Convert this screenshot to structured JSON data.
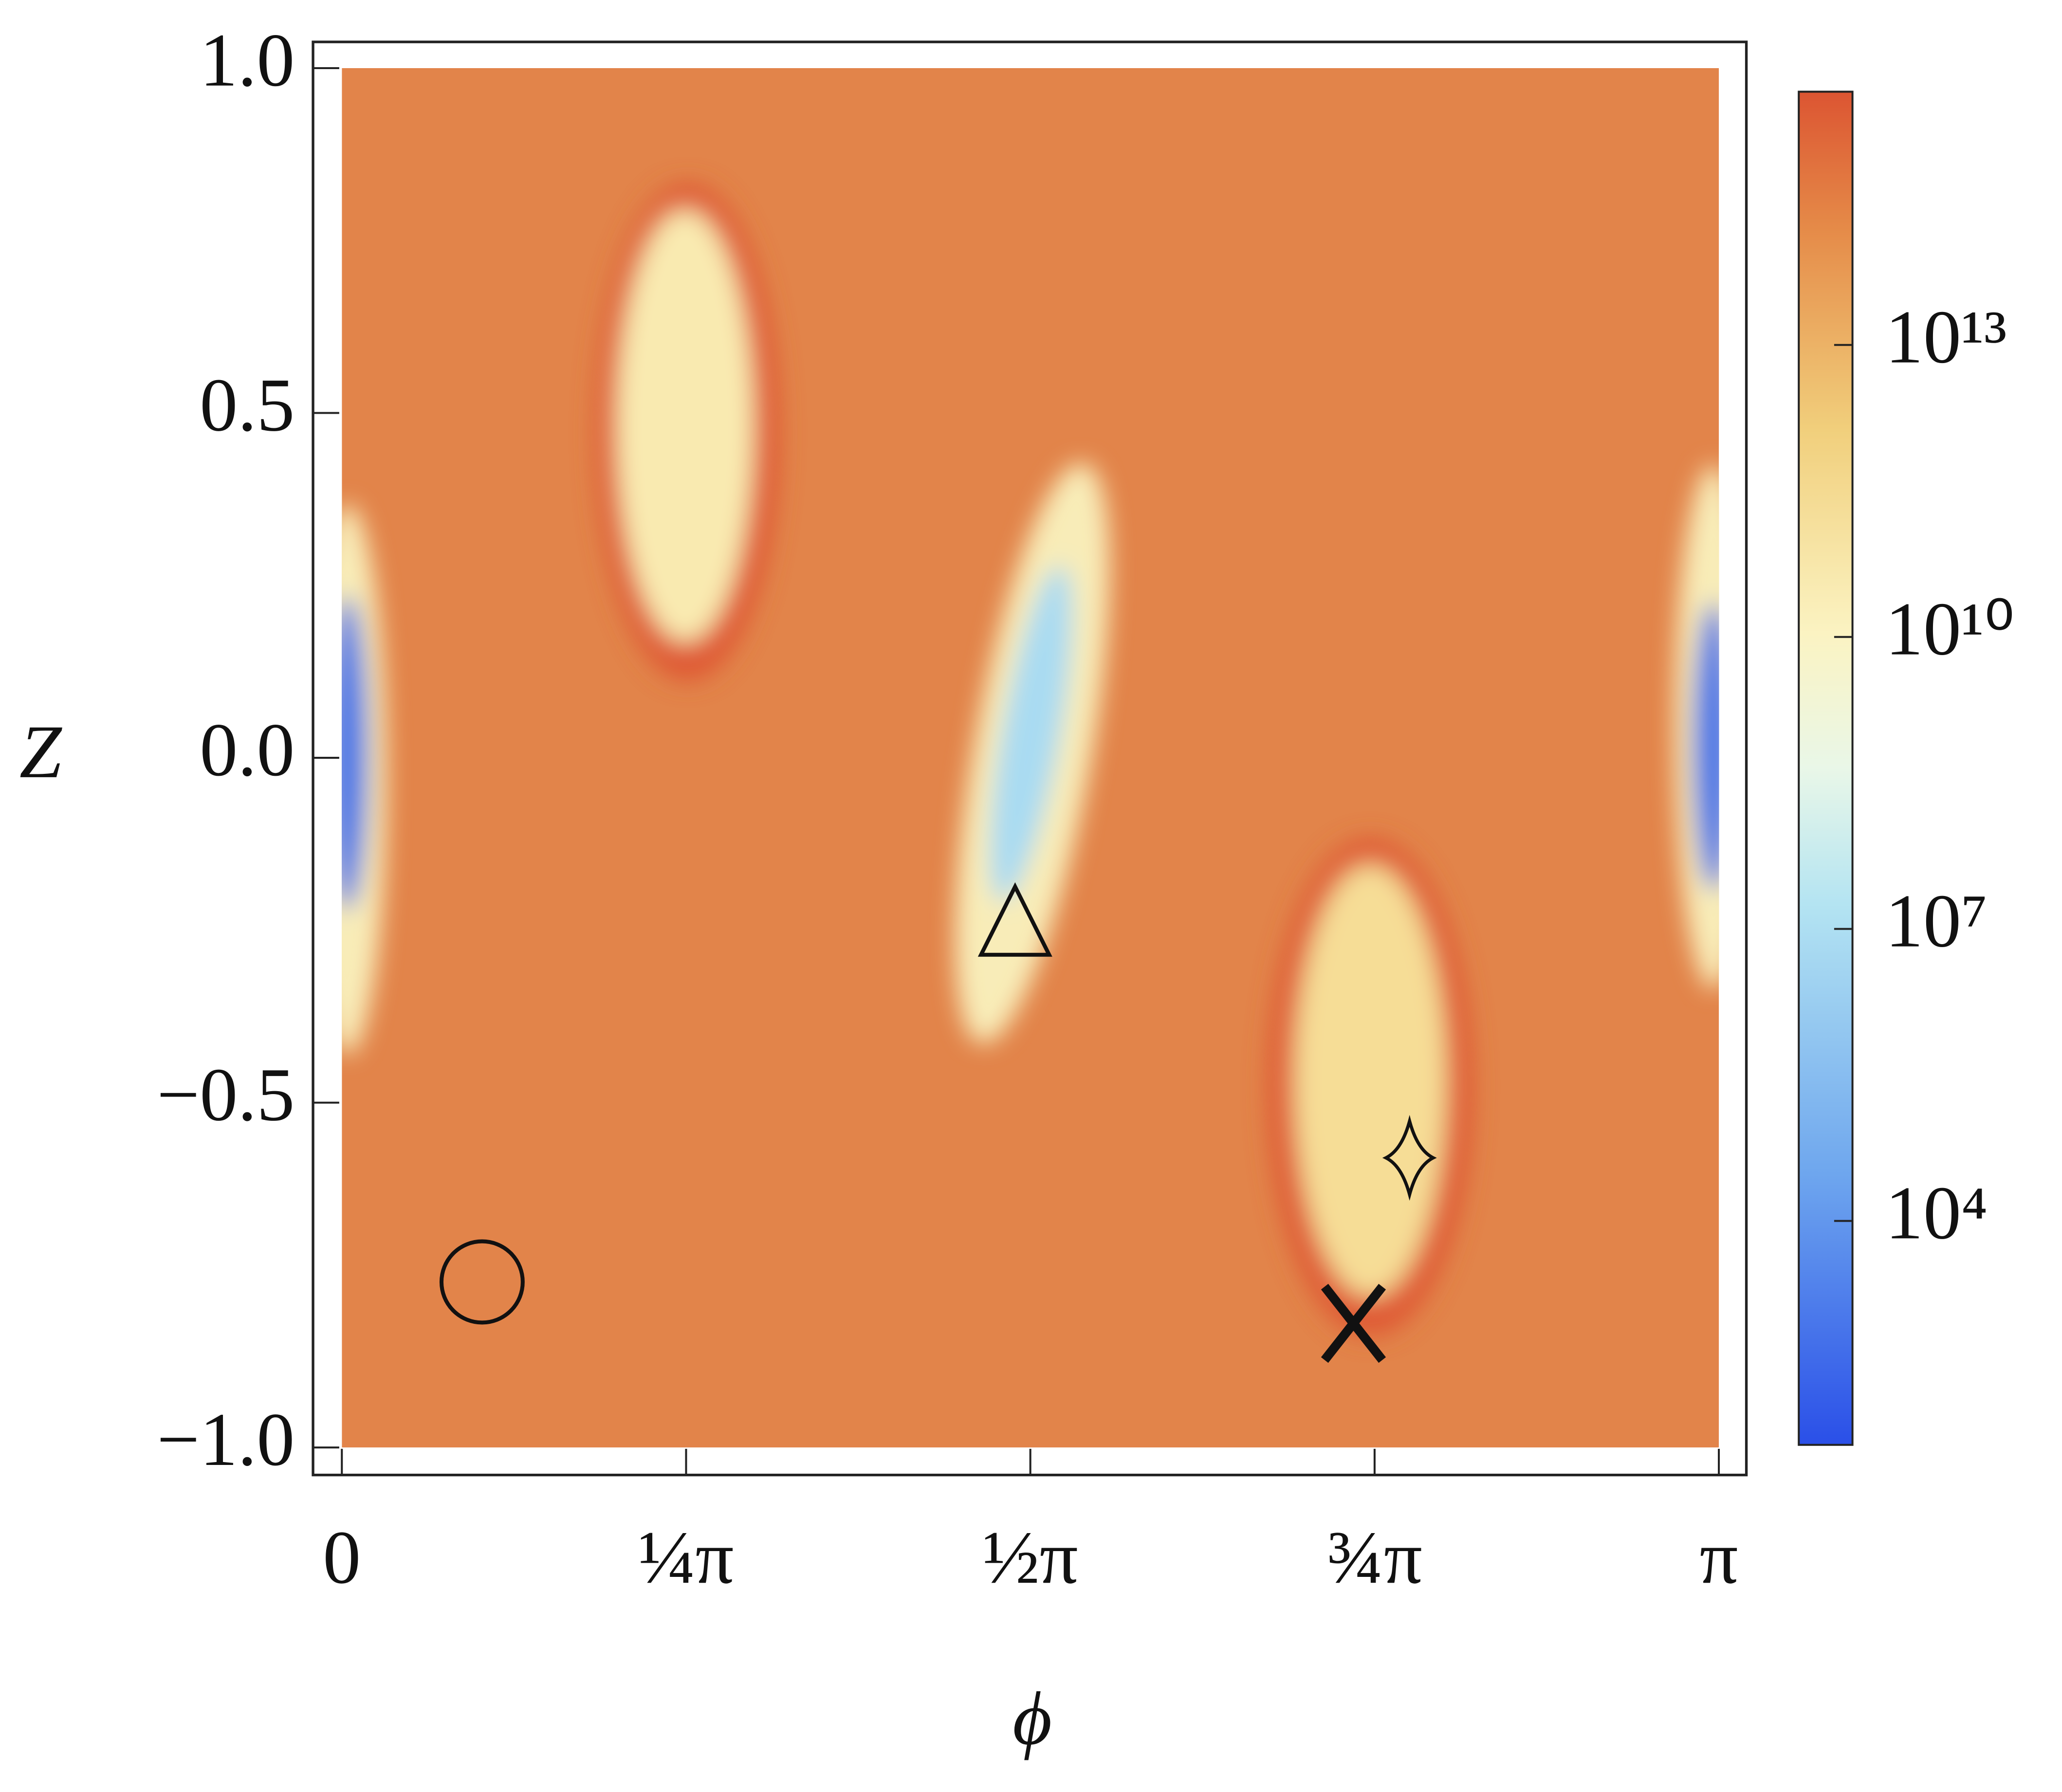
{
  "chart_data": {
    "type": "heatmap",
    "x_label": "ϕ",
    "y_label": "Z",
    "xlim": [
      0,
      3.141592653589793
    ],
    "ylim": [
      -1,
      1
    ],
    "xticks": [
      {
        "value": 0,
        "label": "0"
      },
      {
        "value": 0.7853981633974483,
        "label": "¼π"
      },
      {
        "value": 1.5707963267948966,
        "label": "½π"
      },
      {
        "value": 2.356194490192345,
        "label": "¾π"
      },
      {
        "value": 3.141592653589793,
        "label": "π"
      }
    ],
    "yticks": [
      {
        "value": -1,
        "label": "−1.0"
      },
      {
        "value": -0.5,
        "label": "−0.5"
      },
      {
        "value": 0,
        "label": "0.0"
      },
      0.5,
      {
        "value": 1,
        "label": "1.0"
      }
    ],
    "colorbar": {
      "log_scale": true,
      "lim": [
        50,
        4000000000000000
      ],
      "ticks": [
        {
          "value": 10000,
          "label": "10⁴"
        },
        {
          "value": 10000000,
          "label": "10⁷"
        },
        {
          "value": 10000000000,
          "label": "10¹⁰"
        },
        {
          "value": 10000000000000,
          "label": "10¹³"
        }
      ]
    },
    "points": [
      {
        "marker": "circle",
        "x": 0.32,
        "y": -0.76
      },
      {
        "marker": "triangle",
        "x": 1.536,
        "y": -0.24
      },
      {
        "marker": "diamond",
        "x": 2.436,
        "y": -0.58
      },
      {
        "marker": "x",
        "x": 2.308,
        "y": -0.82
      }
    ]
  }
}
